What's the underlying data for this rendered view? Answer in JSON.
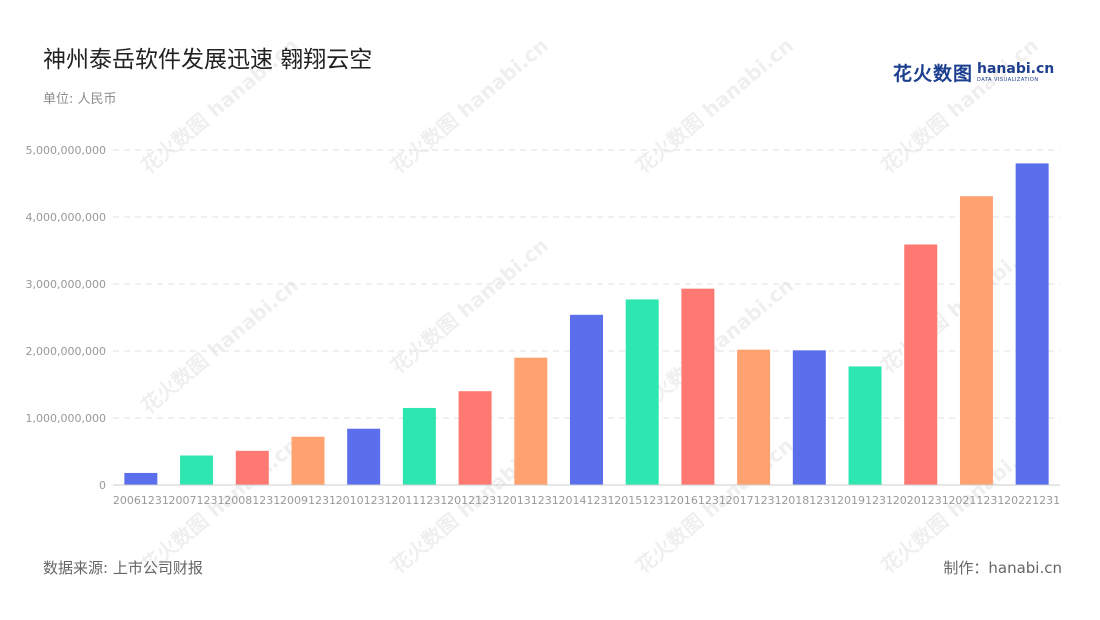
{
  "header": {
    "title": "神州泰岳软件发展迅速 翱翔云空",
    "unit": "单位: 人民币"
  },
  "logo": {
    "cn": "花火数图",
    "en": "hanabi.cn",
    "en_small": "DATA VISUALIZATION"
  },
  "footer": {
    "source": "数据来源: 上市公司财报",
    "maker": "制作：hanabi.cn"
  },
  "colors": {
    "palette": [
      "#5b6fed",
      "#2ee6b0",
      "#ff7872",
      "#ffa270"
    ],
    "grid": "#e0e0e0",
    "axis": "#cccccc",
    "tick_text": "#999999"
  },
  "chart_data": {
    "type": "bar",
    "categories": [
      "20061231",
      "20071231",
      "20081231",
      "20091231",
      "20101231",
      "20111231",
      "20121231",
      "20131231",
      "20141231",
      "20151231",
      "20161231",
      "20171231",
      "20181231",
      "20191231",
      "20201231",
      "20211231",
      "20221231"
    ],
    "values": [
      180000000,
      440000000,
      510000000,
      720000000,
      840000000,
      1150000000,
      1400000000,
      1900000000,
      2540000000,
      2770000000,
      2930000000,
      2020000000,
      2010000000,
      1770000000,
      3590000000,
      4310000000,
      4800000000
    ],
    "ylim": [
      0,
      5000000000
    ],
    "yticks": [
      0,
      1000000000,
      2000000000,
      3000000000,
      4000000000,
      5000000000
    ],
    "ytick_labels": [
      "0",
      "1,000,000,000",
      "2,000,000,000",
      "3,000,000,000",
      "4,000,000,000",
      "5,000,000,000"
    ],
    "grid": "horizontal dashed",
    "legend": "none"
  }
}
